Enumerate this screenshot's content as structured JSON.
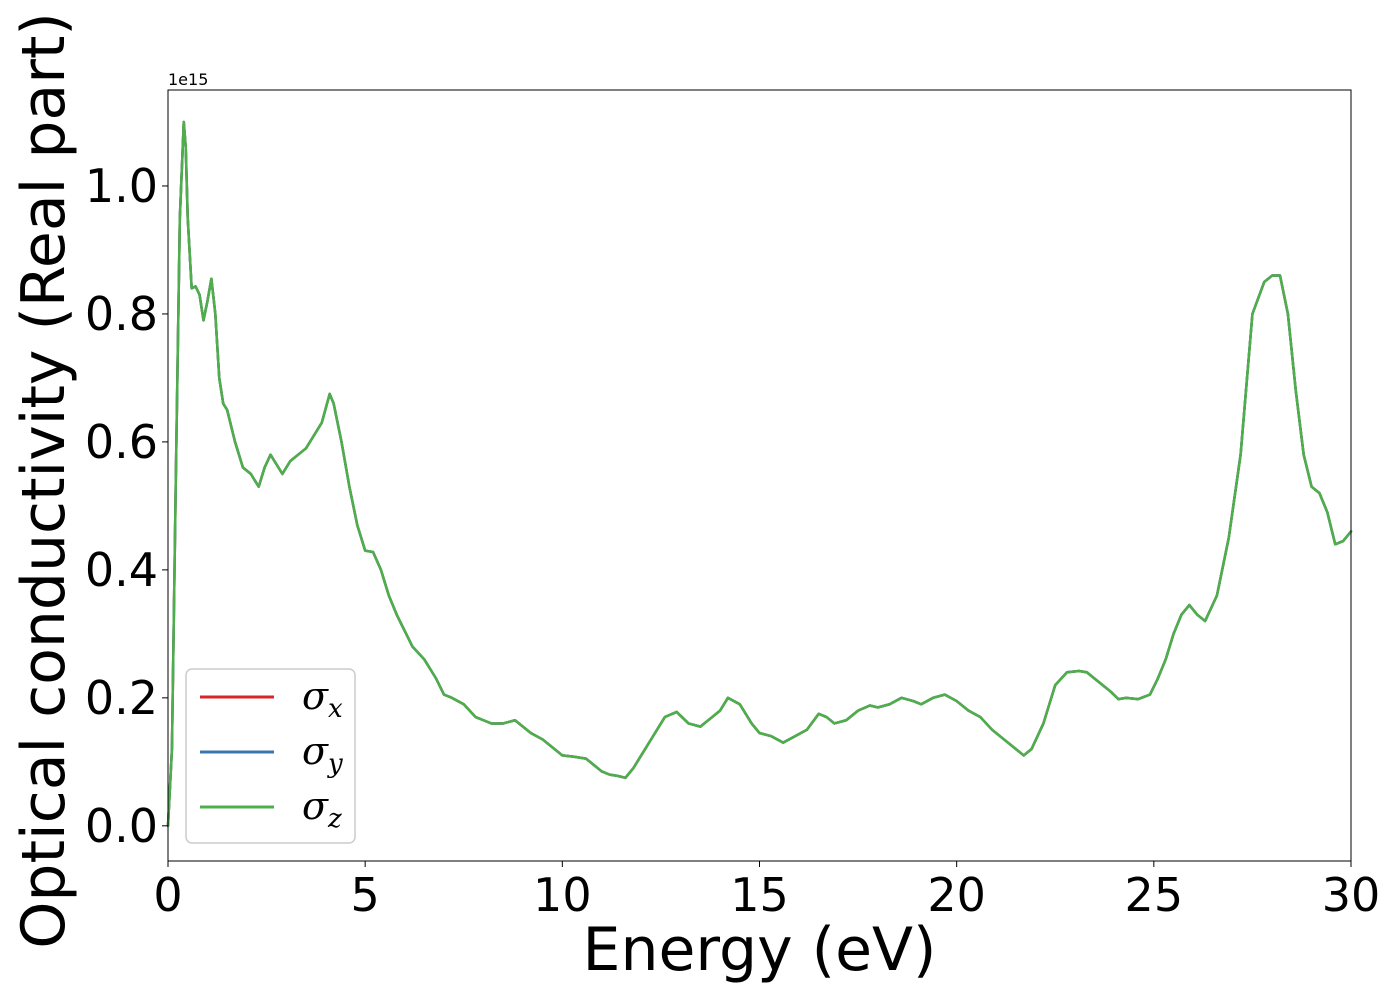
{
  "chart_data": {
    "type": "line",
    "xlabel": "Energy (eV)",
    "ylabel": "Optical conductivity (Real part)",
    "y_offset_label": "1e15",
    "xlim": [
      0,
      30
    ],
    "ylim": [
      -0.055,
      1.15
    ],
    "y_scale_factor": 1000000000000000.0,
    "xticks": [
      0,
      5,
      10,
      15,
      20,
      25,
      30
    ],
    "xtick_labels": [
      "0",
      "5",
      "10",
      "15",
      "20",
      "25",
      "30"
    ],
    "yticks": [
      0.0,
      0.2,
      0.4,
      0.6,
      0.8,
      1.0
    ],
    "ytick_labels": [
      "0.0",
      "0.2",
      "0.4",
      "0.6",
      "0.8",
      "1.0"
    ],
    "grid": false,
    "legend_position": "lower-left",
    "colors": {
      "sigma_x": "#d62728",
      "sigma_y": "#3b75af",
      "sigma_z": "#4daf4a"
    },
    "x": [
      0.0,
      0.1,
      0.2,
      0.3,
      0.4,
      0.45,
      0.5,
      0.6,
      0.7,
      0.8,
      0.9,
      1.0,
      1.1,
      1.2,
      1.3,
      1.4,
      1.5,
      1.7,
      1.9,
      2.1,
      2.3,
      2.45,
      2.6,
      2.7,
      2.9,
      3.1,
      3.3,
      3.5,
      3.7,
      3.9,
      4.1,
      4.2,
      4.4,
      4.6,
      4.8,
      5.0,
      5.2,
      5.4,
      5.6,
      5.8,
      6.0,
      6.2,
      6.5,
      6.8,
      7.0,
      7.2,
      7.5,
      7.8,
      8.0,
      8.2,
      8.5,
      8.8,
      9.0,
      9.2,
      9.5,
      9.8,
      10.0,
      10.3,
      10.6,
      10.8,
      11.0,
      11.2,
      11.4,
      11.6,
      11.8,
      12.0,
      12.3,
      12.6,
      12.9,
      13.2,
      13.5,
      13.8,
      14.0,
      14.2,
      14.5,
      14.8,
      15.0,
      15.3,
      15.6,
      15.9,
      16.2,
      16.5,
      16.7,
      16.9,
      17.2,
      17.5,
      17.8,
      18.0,
      18.3,
      18.6,
      18.9,
      19.1,
      19.4,
      19.7,
      20.0,
      20.3,
      20.6,
      20.9,
      21.2,
      21.5,
      21.7,
      21.9,
      22.2,
      22.5,
      22.8,
      23.1,
      23.3,
      23.6,
      23.9,
      24.1,
      24.3,
      24.6,
      24.9,
      25.1,
      25.3,
      25.5,
      25.7,
      25.9,
      26.1,
      26.3,
      26.6,
      26.9,
      27.2,
      27.5,
      27.8,
      28.0,
      28.2,
      28.4,
      28.6,
      28.8,
      29.0,
      29.2,
      29.4,
      29.6,
      29.8,
      30.0
    ],
    "series": [
      {
        "name": "σx",
        "color": "#d62728",
        "values": [
          0.0,
          0.12,
          0.55,
          0.95,
          1.1,
          1.06,
          0.95,
          0.84,
          0.843,
          0.83,
          0.79,
          0.82,
          0.855,
          0.8,
          0.7,
          0.66,
          0.65,
          0.6,
          0.56,
          0.55,
          0.53,
          0.56,
          0.58,
          0.57,
          0.55,
          0.57,
          0.58,
          0.59,
          0.61,
          0.63,
          0.675,
          0.66,
          0.6,
          0.53,
          0.47,
          0.43,
          0.428,
          0.4,
          0.36,
          0.33,
          0.305,
          0.28,
          0.26,
          0.23,
          0.205,
          0.2,
          0.19,
          0.17,
          0.165,
          0.16,
          0.16,
          0.165,
          0.155,
          0.145,
          0.135,
          0.12,
          0.11,
          0.108,
          0.105,
          0.095,
          0.085,
          0.08,
          0.078,
          0.075,
          0.09,
          0.11,
          0.14,
          0.17,
          0.178,
          0.16,
          0.155,
          0.17,
          0.18,
          0.2,
          0.19,
          0.16,
          0.145,
          0.14,
          0.13,
          0.14,
          0.15,
          0.175,
          0.17,
          0.16,
          0.165,
          0.18,
          0.188,
          0.185,
          0.19,
          0.2,
          0.195,
          0.19,
          0.2,
          0.205,
          0.195,
          0.18,
          0.17,
          0.15,
          0.135,
          0.12,
          0.11,
          0.12,
          0.16,
          0.22,
          0.24,
          0.242,
          0.24,
          0.225,
          0.21,
          0.198,
          0.2,
          0.198,
          0.205,
          0.23,
          0.26,
          0.3,
          0.33,
          0.345,
          0.33,
          0.32,
          0.36,
          0.45,
          0.58,
          0.8,
          0.85,
          0.86,
          0.86,
          0.8,
          0.68,
          0.58,
          0.53,
          0.52,
          0.49,
          0.44,
          0.445,
          0.46
        ]
      },
      {
        "name": "σy",
        "color": "#3b75af",
        "values": [
          0.0,
          0.12,
          0.55,
          0.95,
          1.1,
          1.06,
          0.95,
          0.84,
          0.843,
          0.83,
          0.79,
          0.82,
          0.855,
          0.8,
          0.7,
          0.66,
          0.65,
          0.6,
          0.56,
          0.55,
          0.53,
          0.56,
          0.58,
          0.57,
          0.55,
          0.57,
          0.58,
          0.59,
          0.61,
          0.63,
          0.675,
          0.66,
          0.6,
          0.53,
          0.47,
          0.43,
          0.428,
          0.4,
          0.36,
          0.33,
          0.305,
          0.28,
          0.26,
          0.23,
          0.205,
          0.2,
          0.19,
          0.17,
          0.165,
          0.16,
          0.16,
          0.165,
          0.155,
          0.145,
          0.135,
          0.12,
          0.11,
          0.108,
          0.105,
          0.095,
          0.085,
          0.08,
          0.078,
          0.075,
          0.09,
          0.11,
          0.14,
          0.17,
          0.178,
          0.16,
          0.155,
          0.17,
          0.18,
          0.2,
          0.19,
          0.16,
          0.145,
          0.14,
          0.13,
          0.14,
          0.15,
          0.175,
          0.17,
          0.16,
          0.165,
          0.18,
          0.188,
          0.185,
          0.19,
          0.2,
          0.195,
          0.19,
          0.2,
          0.205,
          0.195,
          0.18,
          0.17,
          0.15,
          0.135,
          0.12,
          0.11,
          0.12,
          0.16,
          0.22,
          0.24,
          0.242,
          0.24,
          0.225,
          0.21,
          0.198,
          0.2,
          0.198,
          0.205,
          0.23,
          0.26,
          0.3,
          0.33,
          0.345,
          0.33,
          0.32,
          0.36,
          0.45,
          0.58,
          0.8,
          0.85,
          0.86,
          0.86,
          0.8,
          0.68,
          0.58,
          0.53,
          0.52,
          0.49,
          0.44,
          0.445,
          0.46
        ]
      },
      {
        "name": "σz",
        "color": "#4daf4a",
        "values": [
          0.0,
          0.12,
          0.55,
          0.95,
          1.1,
          1.06,
          0.95,
          0.84,
          0.843,
          0.83,
          0.79,
          0.82,
          0.855,
          0.8,
          0.7,
          0.66,
          0.65,
          0.6,
          0.56,
          0.55,
          0.53,
          0.56,
          0.58,
          0.57,
          0.55,
          0.57,
          0.58,
          0.59,
          0.61,
          0.63,
          0.675,
          0.66,
          0.6,
          0.53,
          0.47,
          0.43,
          0.428,
          0.4,
          0.36,
          0.33,
          0.305,
          0.28,
          0.26,
          0.23,
          0.205,
          0.2,
          0.19,
          0.17,
          0.165,
          0.16,
          0.16,
          0.165,
          0.155,
          0.145,
          0.135,
          0.12,
          0.11,
          0.108,
          0.105,
          0.095,
          0.085,
          0.08,
          0.078,
          0.075,
          0.09,
          0.11,
          0.14,
          0.17,
          0.178,
          0.16,
          0.155,
          0.17,
          0.18,
          0.2,
          0.19,
          0.16,
          0.145,
          0.14,
          0.13,
          0.14,
          0.15,
          0.175,
          0.17,
          0.16,
          0.165,
          0.18,
          0.188,
          0.185,
          0.19,
          0.2,
          0.195,
          0.19,
          0.2,
          0.205,
          0.195,
          0.18,
          0.17,
          0.15,
          0.135,
          0.12,
          0.11,
          0.12,
          0.16,
          0.22,
          0.24,
          0.242,
          0.24,
          0.225,
          0.21,
          0.198,
          0.2,
          0.198,
          0.205,
          0.23,
          0.26,
          0.3,
          0.33,
          0.345,
          0.33,
          0.32,
          0.36,
          0.45,
          0.58,
          0.8,
          0.85,
          0.86,
          0.86,
          0.8,
          0.68,
          0.58,
          0.53,
          0.52,
          0.49,
          0.44,
          0.445,
          0.46
        ]
      }
    ]
  }
}
